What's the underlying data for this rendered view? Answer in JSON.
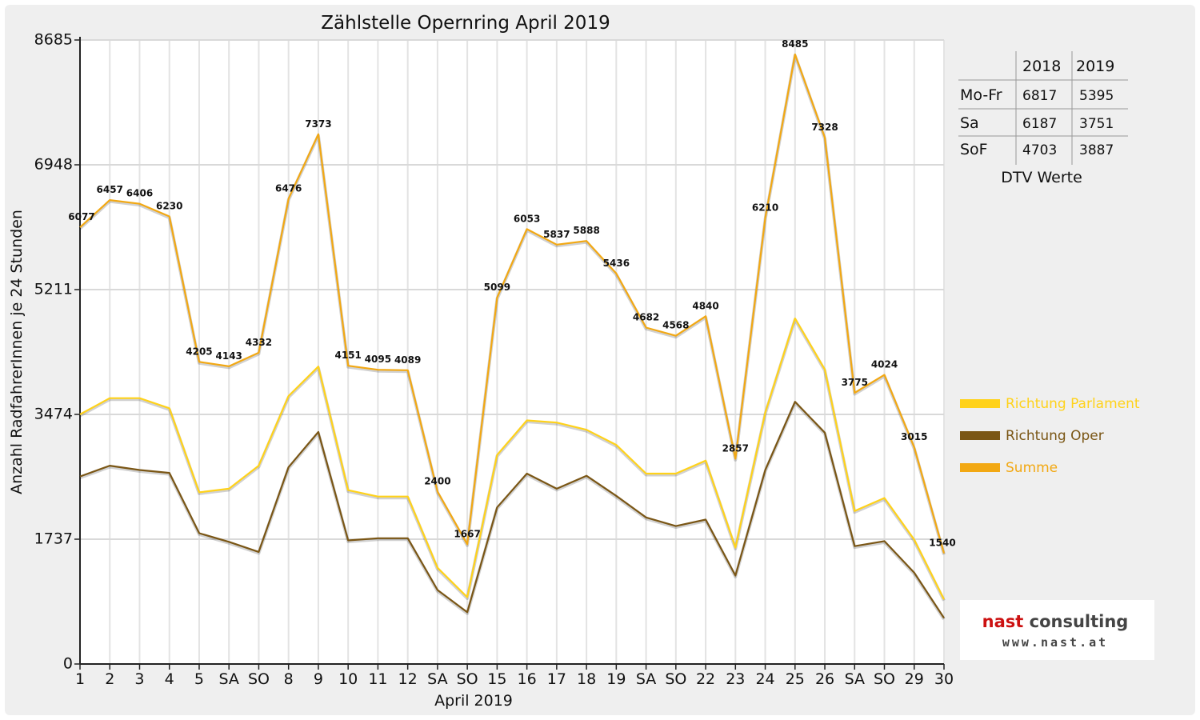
{
  "chart_data": {
    "type": "line",
    "title": "Zählstelle Opernring April 2019",
    "xlabel": "April 2019",
    "ylabel": "Anzahl RadfahrerInnen je 24 Stunden",
    "ylim": [
      0,
      8685
    ],
    "yticks": [
      "0",
      "1737",
      "3474",
      "5211",
      "6948",
      "8685"
    ],
    "categories": [
      "1",
      "2",
      "3",
      "4",
      "5",
      "SA",
      "SO",
      "8",
      "9",
      "10",
      "11",
      "12",
      "SA",
      "SO",
      "15",
      "16",
      "17",
      "18",
      "19",
      "SA",
      "SO",
      "22",
      "23",
      "24",
      "25",
      "26",
      "SA",
      "SO",
      "29",
      "30"
    ],
    "red_categories": [
      6,
      13,
      20,
      21,
      27
    ],
    "grid": true,
    "legend_position": "right",
    "series": [
      {
        "name": "Richtung Parlament",
        "color": "#ffd21a",
        "values": [
          3474,
          3700,
          3700,
          3560,
          2390,
          2440,
          2760,
          3730,
          4140,
          2420,
          2330,
          2330,
          1340,
          930,
          2910,
          3390,
          3360,
          3260,
          3050,
          2650,
          2650,
          2830,
          1620,
          3500,
          4810,
          4100,
          2130,
          2310,
          1730,
          900
        ]
      },
      {
        "name": "Richtung Oper",
        "color": "#7a5615",
        "values": [
          2610,
          2760,
          2700,
          2660,
          1820,
          1700,
          1560,
          2740,
          3230,
          1720,
          1750,
          1750,
          1030,
          720,
          2180,
          2650,
          2440,
          2620,
          2340,
          2040,
          1920,
          2010,
          1230,
          2700,
          3650,
          3220,
          1640,
          1710,
          1270,
          640
        ]
      },
      {
        "name": "Summe",
        "color": "#f2a813",
        "values": [
          6077,
          6457,
          6406,
          6230,
          4205,
          4143,
          4332,
          6476,
          7373,
          4151,
          4095,
          4089,
          2400,
          1667,
          5099,
          6053,
          5837,
          5888,
          5436,
          4682,
          4568,
          4840,
          2857,
          6210,
          8485,
          7328,
          3775,
          4024,
          3015,
          1540
        ],
        "labels": [
          "6077",
          "6457",
          "6406",
          "6230",
          "4205",
          "4143",
          "4332",
          "6476",
          "7373",
          "4151",
          "4095",
          "4089",
          "2400",
          "1667",
          "5099",
          "6053",
          "5837",
          "5888",
          "5436",
          "4682",
          "4568",
          "4840",
          "2857",
          "6210",
          "8485",
          "7328",
          "3775",
          "4024",
          "3015",
          "1540"
        ]
      }
    ]
  },
  "dtv_table": {
    "headers": [
      "",
      "2018",
      "2019"
    ],
    "rows": [
      {
        "label": "Mo-Fr",
        "v2018": "6817",
        "v2019": "5395"
      },
      {
        "label": "Sa",
        "v2018": "6187",
        "v2019": "3751"
      },
      {
        "label": "SoF",
        "v2018": "4703",
        "v2019": "3887"
      }
    ],
    "caption": "DTV Werte"
  },
  "logo": {
    "name": "nast consulting",
    "url": "www.nast.at"
  },
  "colors": {
    "red_label": "#e00000",
    "logo_red": "#cc1111",
    "logo_gray": "#444444"
  }
}
